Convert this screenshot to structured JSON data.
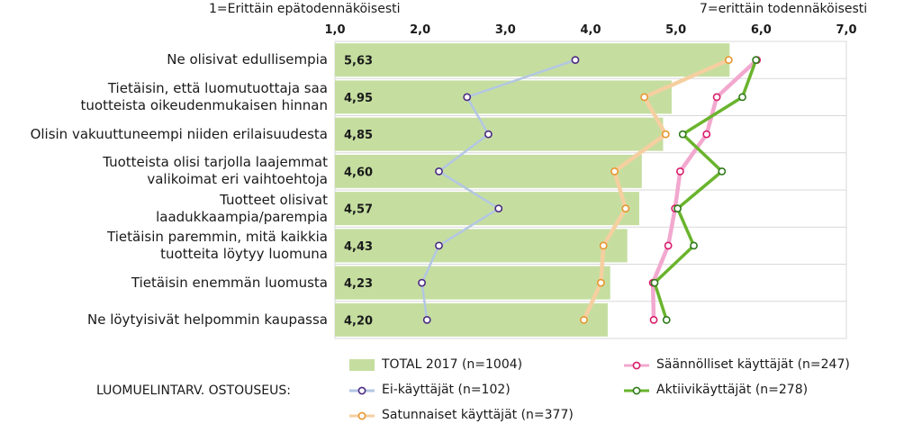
{
  "chart_data": {
    "type": "bar",
    "scale_low_label": "1=Erittäin epätodennäköisesti",
    "scale_high_label": "7=erittäin todennäköisesti",
    "xlim": [
      1.0,
      7.0
    ],
    "x_ticks": [
      "1,0",
      "2,0",
      "3,0",
      "4,0",
      "5,0",
      "6,0",
      "7,0"
    ],
    "categories": [
      "Ne olisivat edullisempia",
      "Tietäisin, että luomutuottaja saa\ntuotteista oikeudenmukaisen hinnan",
      "Olisin vakuuttuneempi niiden erilaisuudesta",
      "Tuotteista olisi tarjolla laajemmat\nvalikoimat eri vaihtoehtoja",
      "Tuotteet olisivat\nlaadukkaampia/parempia",
      "Tietäisin paremmin, mitä kaikkia\ntuotteita löytyy luomuna",
      "Tietäisin enemmän luomusta",
      "Ne löytyisivät helpommin kaupassa"
    ],
    "total_labels": [
      "5,63",
      "4,95",
      "4,85",
      "4,60",
      "4,57",
      "4,43",
      "4,23",
      "4,20"
    ],
    "legend_caption": "LUOMUELINTARV. OSTOUSEUS:",
    "series": [
      {
        "name": "TOTAL 2017 (n=1004)",
        "kind": "bar",
        "color": "#c5dea0",
        "values": [
          5.63,
          4.95,
          4.85,
          4.6,
          4.57,
          4.43,
          4.23,
          4.2
        ]
      },
      {
        "name": "Ei-käyttäjät (n=102)",
        "kind": "line",
        "color": "#b3c6e3",
        "marker": "#4b2a82",
        "values": [
          3.82,
          2.55,
          2.8,
          2.22,
          2.92,
          2.22,
          2.02,
          2.08
        ]
      },
      {
        "name": "Satunnaiset käyttäjät (n=377)",
        "kind": "line",
        "color": "#f5cfa0",
        "marker": "#e8962e",
        "values": [
          5.62,
          4.63,
          4.88,
          4.28,
          4.41,
          4.15,
          4.12,
          3.92
        ]
      },
      {
        "name": "Säännölliset käyttäjät (n=247)",
        "kind": "line",
        "color": "#f2a8cf",
        "marker": "#d81b6a",
        "values": [
          5.95,
          5.48,
          5.36,
          5.05,
          4.99,
          4.91,
          4.73,
          4.74
        ]
      },
      {
        "name": "Aktiivikäyttäjät (n=278)",
        "kind": "line",
        "color": "#6ab42d",
        "marker": "#2f7a1a",
        "values": [
          5.94,
          5.78,
          5.08,
          5.54,
          5.02,
          5.21,
          4.75,
          4.89
        ]
      }
    ]
  }
}
